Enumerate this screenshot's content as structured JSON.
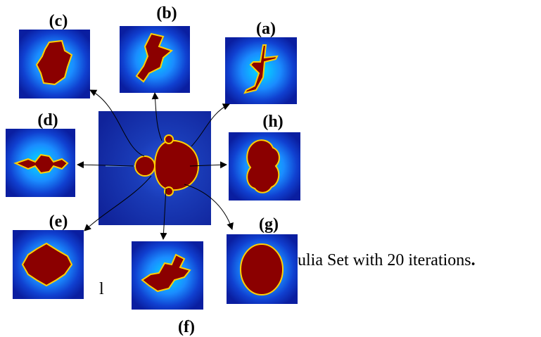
{
  "panels": [
    "(a)",
    "(b)",
    "(c)",
    "(d)",
    "(e)",
    "(f)",
    "(g)",
    "(h)"
  ],
  "caption": {
    "text": "ulia Set with 20 iterations",
    "end": "."
  },
  "fragment": "l"
}
